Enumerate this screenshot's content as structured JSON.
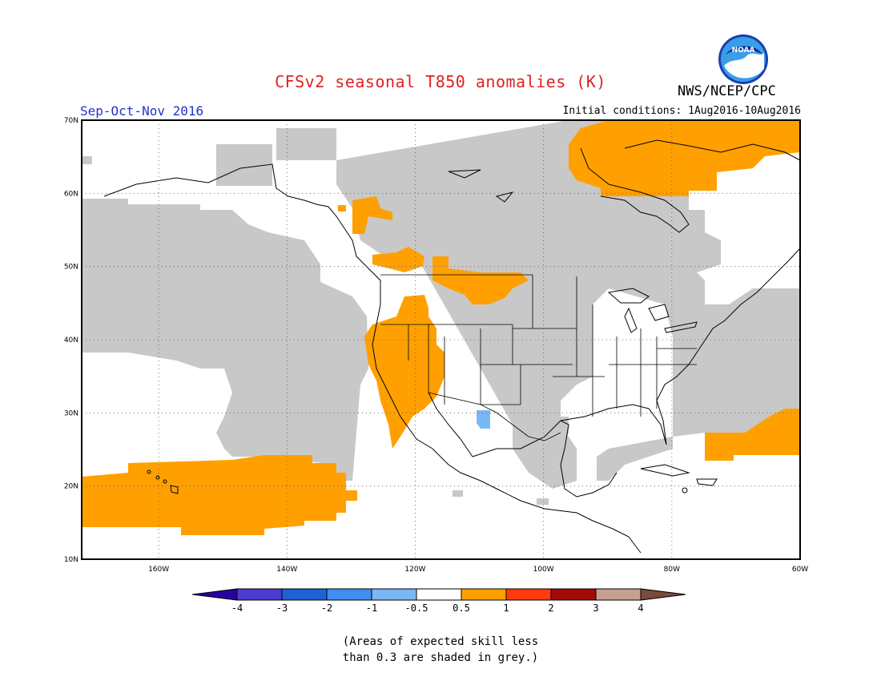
{
  "header": {
    "title": "CFSv2 seasonal T850 anomalies (K)",
    "season": "Sep-Oct-Nov 2016",
    "org": "NWS/NCEP/CPC",
    "initial_conditions": "Initial conditions: 1Aug2016-10Aug2016",
    "logo_text": "NOAA"
  },
  "colors": {
    "title": "#dd2222",
    "season": "#2233cc",
    "land_outline": "#000000",
    "grey_low_skill": "#c8c8c8",
    "ocean_background": "#ffffff"
  },
  "map": {
    "projection": "lat-lon",
    "lon_range": [
      -172,
      -60
    ],
    "lat_range": [
      10,
      70
    ],
    "lat_ticks": [
      "70N",
      "60N",
      "50N",
      "40N",
      "30N",
      "20N",
      "10N"
    ],
    "lon_ticks": [
      "160W",
      "140W",
      "120W",
      "100W",
      "80W",
      "60W"
    ],
    "grid": "dotted"
  },
  "colorbar": {
    "labels": [
      "-4",
      "-3",
      "-2",
      "-1",
      "-0.5",
      "0.5",
      "1",
      "2",
      "3",
      "4"
    ],
    "colors": [
      "#2a00a0",
      "#4a3ccc",
      "#1f62d6",
      "#3f8ef0",
      "#7ab8f5",
      "#ffffff",
      "#ffa000",
      "#ff3a10",
      "#a50a0a",
      "#c8a090",
      "#7a4a3a"
    ]
  },
  "note": {
    "line1": "(Areas of expected skill less",
    "line2": "than 0.3 are shaded in grey.)"
  }
}
